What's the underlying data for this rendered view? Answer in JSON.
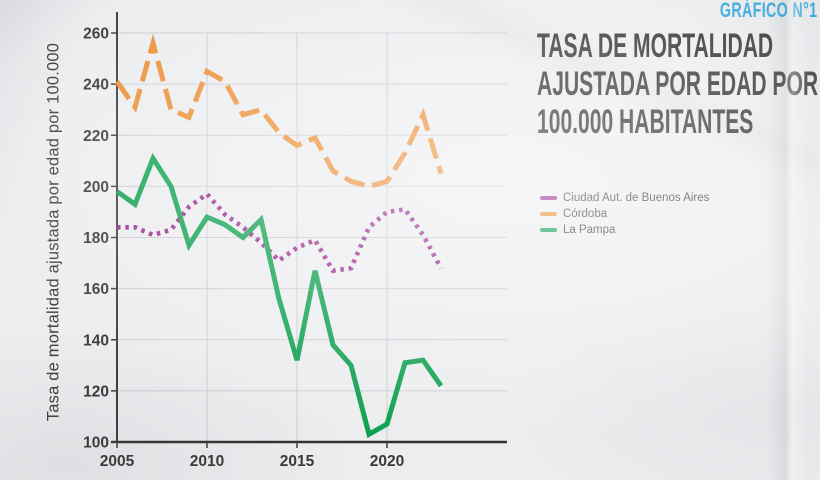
{
  "page": {
    "badge": "GRÁFICO N°1",
    "title_lines": [
      "TASA DE MORTALIDAD",
      "AJUSTADA POR EDAD POR",
      "100.000 HABITANTES"
    ]
  },
  "chart_data": {
    "type": "line",
    "title": "TASA DE MORTALIDAD AJUSTADA POR EDAD POR 100.000 HABITANTES",
    "ylabel": "Tasa de mortalidad ajustada por edad por 100.000",
    "xlabel": "",
    "x": [
      2005,
      2006,
      2007,
      2008,
      2009,
      2010,
      2011,
      2012,
      2013,
      2014,
      2015,
      2016,
      2017,
      2018,
      2019,
      2020,
      2021,
      2022,
      2023
    ],
    "xticks": [
      2005,
      2010,
      2015,
      2020
    ],
    "yticks": [
      100,
      120,
      140,
      160,
      180,
      200,
      220,
      240,
      260
    ],
    "ylim": [
      100,
      260
    ],
    "grid": true,
    "legend_position": "right",
    "series": [
      {
        "name": "Ciudad Aut. de Buenos Aires",
        "color": "#9C2B8E",
        "line_style": "dotted",
        "values": [
          184,
          184,
          181,
          183,
          192,
          197,
          189,
          184,
          178,
          171,
          176,
          179,
          167,
          168,
          184,
          190,
          191,
          181,
          168
        ]
      },
      {
        "name": "Córdoba",
        "color": "#EC8F33",
        "line_style": "dashed",
        "values": [
          241,
          231,
          256,
          230,
          227,
          245,
          241,
          228,
          230,
          221,
          216,
          219,
          206,
          202,
          200,
          202,
          213,
          228,
          205
        ]
      },
      {
        "name": "La Pampa",
        "color": "#0FA04F",
        "line_style": "solid",
        "values": [
          198,
          193,
          211,
          200,
          177,
          188,
          185,
          180,
          187,
          156,
          132,
          167,
          138,
          130,
          103,
          107,
          131,
          132,
          122
        ]
      }
    ]
  },
  "colors": {
    "badge": "#2BA8E0",
    "title": "#2E2E2E",
    "axis": "#3C3C3C",
    "grid": "#CBCCD1",
    "tick_label": "#383838",
    "background": "#ECEDEF"
  }
}
